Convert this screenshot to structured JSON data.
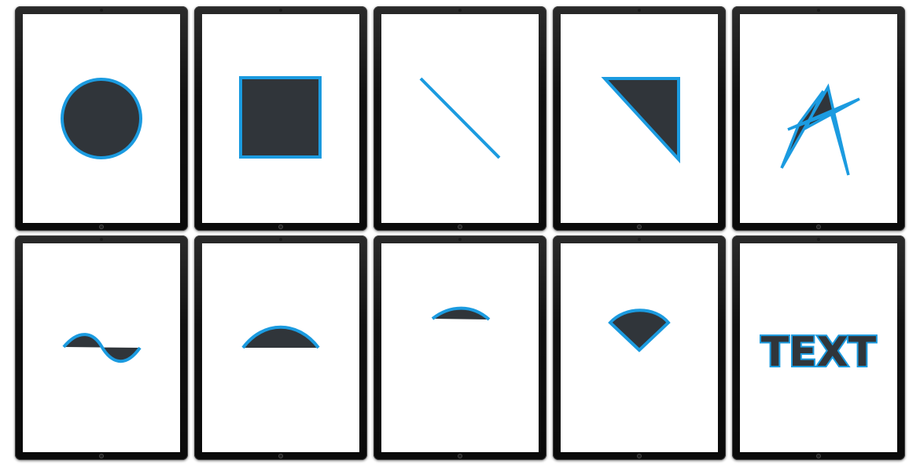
{
  "colors": {
    "fill": "#30353a",
    "stroke": "#1b9be0",
    "bezel": "#111111",
    "screen": "#ffffff"
  },
  "tablets": [
    {
      "name": "tablet-circle",
      "shape": "circle"
    },
    {
      "name": "tablet-square",
      "shape": "square"
    },
    {
      "name": "tablet-line",
      "shape": "line"
    },
    {
      "name": "tablet-triangle",
      "shape": "triangle"
    },
    {
      "name": "tablet-scribble-star",
      "shape": "scribble-star"
    },
    {
      "name": "tablet-wave",
      "shape": "wave"
    },
    {
      "name": "tablet-arch",
      "shape": "arch"
    },
    {
      "name": "tablet-small-arch",
      "shape": "small-arch"
    },
    {
      "name": "tablet-fan",
      "shape": "fan"
    },
    {
      "name": "tablet-text",
      "shape": "text",
      "text": "TEXT"
    }
  ]
}
